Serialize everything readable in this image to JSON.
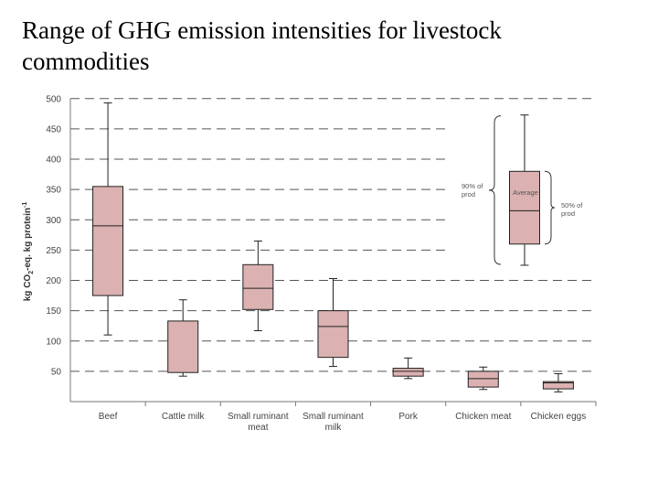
{
  "slide": {
    "title": "Range of GHG emission intensities for livestock commodities"
  },
  "chart_data": {
    "type": "boxplot",
    "title": "",
    "xlabel": "",
    "ylabel_parts": [
      "kg CO",
      "2",
      "-eq. kg protein",
      "-1"
    ],
    "ylim": [
      0,
      500
    ],
    "yticks": [
      50,
      100,
      150,
      200,
      250,
      300,
      350,
      400,
      450,
      500
    ],
    "grid": "dashed horizontal",
    "colors": {
      "box_fill": "#dbb1b1",
      "box_stroke": "#222222",
      "grid": "#555555"
    },
    "categories": [
      {
        "label": [
          "Beef"
        ],
        "whisker_low": 110,
        "q1": 175,
        "median": 290,
        "q3": 355,
        "whisker_high": 493
      },
      {
        "label": [
          "Cattle milk"
        ],
        "whisker_low": 42,
        "q1": 48,
        "median": null,
        "q3": 133,
        "whisker_high": 168
      },
      {
        "label": [
          "Small ruminant",
          "meat"
        ],
        "whisker_low": 117,
        "q1": 152,
        "median": 187,
        "q3": 226,
        "whisker_high": 265
      },
      {
        "label": [
          "Small ruminant",
          "milk"
        ],
        "whisker_low": 58,
        "q1": 73,
        "median": 124,
        "q3": 150,
        "whisker_high": 203
      },
      {
        "label": [
          "Pork"
        ],
        "whisker_low": 38,
        "q1": 42,
        "median": 50,
        "q3": 55,
        "whisker_high": 72
      },
      {
        "label": [
          "Chicken meat"
        ],
        "whisker_low": 20,
        "q1": 24,
        "median": 38,
        "q3": 50,
        "whisker_high": 57
      },
      {
        "label": [
          "Chicken eggs"
        ],
        "whisker_low": 16,
        "q1": 21,
        "median": 31,
        "q3": 33,
        "whisker_high": 46
      }
    ],
    "legend": {
      "placement": "top-right",
      "example": {
        "whisker_low": 225,
        "q1": 260,
        "median": 315,
        "q3": 380,
        "whisker_high": 473
      },
      "labels": {
        "range90": [
          "90% of",
          "prod"
        ],
        "average": "Average",
        "range50": [
          "50% of",
          "prod"
        ]
      }
    }
  }
}
